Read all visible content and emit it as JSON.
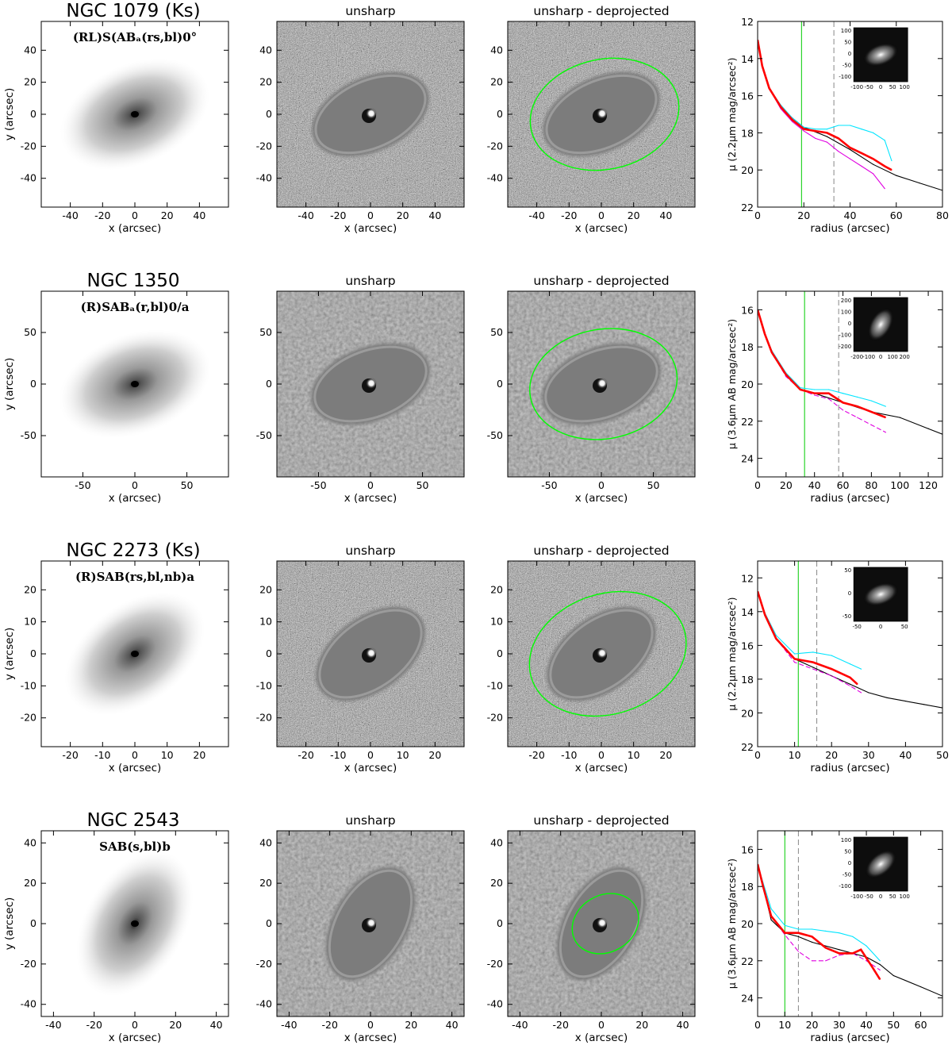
{
  "panel_titles": {
    "unsharp": "unsharp",
    "deprojected": "unsharp - deprojected"
  },
  "axis_labels": {
    "x": "x (arcsec)",
    "y": "y (arcsec)",
    "radius": "radius (arcsec)"
  },
  "galaxies": [
    {
      "name": "NGC 1079   (Ks)",
      "classification": "(RL)S(AB_a(rs,bl)0°",
      "image_ticks": [
        -40,
        -20,
        0,
        20,
        40
      ],
      "image_range": [
        -58,
        58
      ],
      "profile": {
        "ylabel": "μ (2.2μm mag/arcsec²)",
        "xlim": [
          0,
          80
        ],
        "xticks": [
          0,
          20,
          40,
          60,
          80
        ],
        "ylim": [
          22,
          12
        ],
        "yticks": [
          12,
          14,
          16,
          18,
          20,
          22
        ],
        "green_line": 19,
        "dashed_line": 33,
        "inset_ticks_x": [
          "-100",
          "-50",
          "0",
          "50",
          "100"
        ],
        "inset_ticks_y": [
          "100",
          "50",
          "0",
          "-50",
          "-100"
        ]
      },
      "ellipse": {
        "a": 30,
        "b": 22,
        "angle": -12
      }
    },
    {
      "name": "NGC 1350",
      "classification": "(R)SAB_a(r,bl)0/a",
      "image_ticks": [
        -50,
        0,
        50
      ],
      "image_range": [
        -90,
        90
      ],
      "profile": {
        "ylabel": "μ (3.6μm AB mag/arcsec²)",
        "xlim": [
          0,
          130
        ],
        "xticks": [
          0,
          20,
          40,
          60,
          80,
          100,
          120
        ],
        "ylim": [
          25,
          15
        ],
        "yticks": [
          16,
          18,
          20,
          22,
          24
        ],
        "green_line": 33,
        "dashed_line": 57,
        "inset_ticks_x": [
          "-200",
          "-100",
          "0",
          "100",
          "200"
        ],
        "inset_ticks_y": [
          "200",
          "100",
          "0",
          "-100",
          "-200"
        ]
      },
      "ellipse": {
        "a": 46,
        "b": 34,
        "angle": -10
      }
    },
    {
      "name": "NGC 2273   (Ks)",
      "classification": "(R)SAB(rs,bl,nb)a",
      "image_ticks": [
        -20,
        -10,
        0,
        10,
        20
      ],
      "image_range": [
        -29,
        29
      ],
      "profile": {
        "ylabel": "μ (2.2μm mag/arcsec²)",
        "xlim": [
          0,
          50
        ],
        "xticks": [
          0,
          10,
          20,
          30,
          40,
          50
        ],
        "ylim": [
          22,
          11
        ],
        "yticks": [
          12,
          14,
          16,
          18,
          20,
          22
        ],
        "green_line": 11,
        "dashed_line": 16,
        "inset_ticks_x": [
          "-50",
          "0",
          "50"
        ],
        "inset_ticks_y": [
          "50",
          "0",
          "-50"
        ]
      },
      "ellipse": {
        "a": 16,
        "b": 12,
        "angle": -18
      }
    },
    {
      "name": "NGC 2543",
      "classification": "SAB(s,bl)b",
      "image_ticks": [
        -40,
        -20,
        0,
        20,
        40
      ],
      "image_range": [
        -46,
        46
      ],
      "profile": {
        "ylabel": "μ (3.6μm AB mag/arcsec²)",
        "xlim": [
          0,
          68
        ],
        "xticks": [
          0,
          10,
          20,
          30,
          40,
          50,
          60
        ],
        "ylim": [
          25,
          15
        ],
        "yticks": [
          16,
          18,
          20,
          22,
          24
        ],
        "green_line": 10,
        "dashed_line": 15,
        "inset_ticks_x": [
          "-100",
          "-50",
          "0",
          "50",
          "100"
        ],
        "inset_ticks_y": [
          "100",
          "50",
          "0",
          "-50",
          "-100"
        ]
      },
      "ellipse": {
        "a": 11,
        "b": 9,
        "angle": -30
      }
    }
  ],
  "chart_data": [
    {
      "type": "line",
      "galaxy": "NGC 1079",
      "xlabel": "radius (arcsec)",
      "ylabel": "μ (2.2μm mag/arcsec²)",
      "xlim": [
        0,
        80
      ],
      "ylim": [
        22,
        12
      ],
      "series": [
        {
          "color": "#000000",
          "x": [
            0,
            2,
            5,
            10,
            15,
            20,
            30,
            40,
            50,
            60,
            70,
            80
          ],
          "y": [
            13,
            14.4,
            15.6,
            16.6,
            17.2,
            17.7,
            18.2,
            18.9,
            19.7,
            20.3,
            20.7,
            21.1
          ]
        },
        {
          "color": "#00e5ff",
          "x": [
            0,
            2,
            5,
            10,
            15,
            20,
            25,
            30,
            35,
            40,
            45,
            50,
            55,
            58
          ],
          "y": [
            13,
            14.4,
            15.6,
            16.5,
            17.2,
            17.7,
            17.8,
            17.8,
            17.6,
            17.6,
            17.8,
            18.0,
            18.4,
            19.5
          ]
        },
        {
          "color": "#ff0000",
          "x": [
            0,
            2,
            5,
            10,
            15,
            20,
            25,
            30,
            35,
            40,
            45,
            50,
            55,
            58
          ],
          "y": [
            13,
            14.4,
            15.6,
            16.6,
            17.3,
            17.8,
            17.9,
            18.0,
            18.3,
            18.8,
            19.1,
            19.4,
            19.8,
            20.0
          ]
        },
        {
          "color": "#e000e0",
          "x": [
            0,
            2,
            5,
            10,
            15,
            20,
            25,
            30,
            35,
            40,
            45,
            50,
            55
          ],
          "y": [
            13,
            14.4,
            15.6,
            16.7,
            17.4,
            17.9,
            18.3,
            18.5,
            19.0,
            19.4,
            19.8,
            20.2,
            21.0
          ]
        }
      ]
    },
    {
      "type": "line",
      "galaxy": "NGC 1350",
      "xlabel": "radius (arcsec)",
      "ylabel": "μ (3.6μm AB mag/arcsec²)",
      "xlim": [
        0,
        130
      ],
      "ylim": [
        25,
        15
      ],
      "series": [
        {
          "color": "#000000",
          "x": [
            0,
            5,
            10,
            20,
            30,
            40,
            60,
            80,
            100,
            120,
            130
          ],
          "y": [
            16,
            17.3,
            18.3,
            19.5,
            20.3,
            20.5,
            21.0,
            21.5,
            21.8,
            22.4,
            22.7
          ]
        },
        {
          "color": "#00e5ff",
          "x": [
            0,
            5,
            10,
            20,
            30,
            40,
            50,
            60,
            70,
            80,
            90
          ],
          "y": [
            16,
            17.3,
            18.2,
            19.4,
            20.2,
            20.3,
            20.3,
            20.5,
            20.7,
            20.9,
            21.2
          ]
        },
        {
          "color": "#ff0000",
          "x": [
            0,
            5,
            10,
            20,
            30,
            40,
            50,
            60,
            70,
            80,
            90
          ],
          "y": [
            16,
            17.3,
            18.3,
            19.5,
            20.3,
            20.5,
            20.5,
            21.0,
            21.2,
            21.5,
            21.8
          ]
        },
        {
          "color": "#e000e0",
          "x": [
            0,
            5,
            10,
            20,
            30,
            40,
            50,
            60,
            70,
            80,
            90
          ],
          "y": [
            16,
            17.3,
            18.3,
            19.6,
            20.3,
            20.6,
            20.8,
            21.4,
            21.8,
            22.2,
            22.6
          ]
        }
      ]
    },
    {
      "type": "line",
      "galaxy": "NGC 2273",
      "xlabel": "radius (arcsec)",
      "ylabel": "μ (2.2μm mag/arcsec²)",
      "xlim": [
        0,
        50
      ],
      "ylim": [
        22,
        11
      ],
      "series": [
        {
          "color": "#000000",
          "x": [
            0,
            2,
            5,
            10,
            15,
            20,
            25,
            30,
            35,
            40,
            45,
            50
          ],
          "y": [
            12.8,
            14.2,
            15.6,
            16.8,
            17.3,
            17.8,
            18.3,
            18.8,
            19.1,
            19.3,
            19.5,
            19.7
          ]
        },
        {
          "color": "#00e5ff",
          "x": [
            0,
            2,
            5,
            10,
            15,
            20,
            25,
            28
          ],
          "y": [
            12.8,
            14.1,
            15.4,
            16.5,
            16.4,
            16.6,
            17.1,
            17.4
          ]
        },
        {
          "color": "#ff0000",
          "x": [
            0,
            2,
            5,
            10,
            15,
            20,
            25,
            27
          ],
          "y": [
            12.8,
            14.2,
            15.6,
            16.8,
            17.0,
            17.4,
            17.9,
            18.3
          ]
        },
        {
          "color": "#e000e0",
          "x": [
            0,
            2,
            5,
            10,
            15,
            20,
            25,
            28
          ],
          "y": [
            12.8,
            14.2,
            15.6,
            17.0,
            17.4,
            17.8,
            18.4,
            18.8
          ]
        }
      ]
    },
    {
      "type": "line",
      "galaxy": "NGC 2543",
      "xlabel": "radius (arcsec)",
      "ylabel": "μ (3.6μm AB mag/arcsec²)",
      "xlim": [
        0,
        68
      ],
      "ylim": [
        25,
        15
      ],
      "series": [
        {
          "color": "#000000",
          "x": [
            0,
            2,
            5,
            10,
            15,
            20,
            30,
            40,
            45,
            50,
            60,
            68
          ],
          "y": [
            16.8,
            18.0,
            19.8,
            20.5,
            20.7,
            21.0,
            21.4,
            21.8,
            22.2,
            22.8,
            23.4,
            23.9
          ]
        },
        {
          "color": "#00e5ff",
          "x": [
            0,
            2,
            5,
            10,
            15,
            20,
            25,
            30,
            35,
            40,
            45
          ],
          "y": [
            16.8,
            17.8,
            19.2,
            20.1,
            20.3,
            20.3,
            20.4,
            20.5,
            20.7,
            21.2,
            22.0
          ]
        },
        {
          "color": "#ff0000",
          "x": [
            0,
            2,
            5,
            10,
            15,
            20,
            25,
            30,
            35,
            38,
            42,
            45
          ],
          "y": [
            16.8,
            18.0,
            19.6,
            20.5,
            20.5,
            20.7,
            21.3,
            21.6,
            21.6,
            21.4,
            22.3,
            23.0
          ]
        },
        {
          "color": "#e000e0",
          "x": [
            0,
            2,
            5,
            10,
            15,
            20,
            25,
            30,
            35,
            40,
            45
          ],
          "y": [
            16.8,
            18.0,
            19.6,
            20.6,
            21.5,
            22.0,
            22.0,
            21.7,
            21.6,
            22.0,
            22.5
          ]
        }
      ]
    }
  ]
}
